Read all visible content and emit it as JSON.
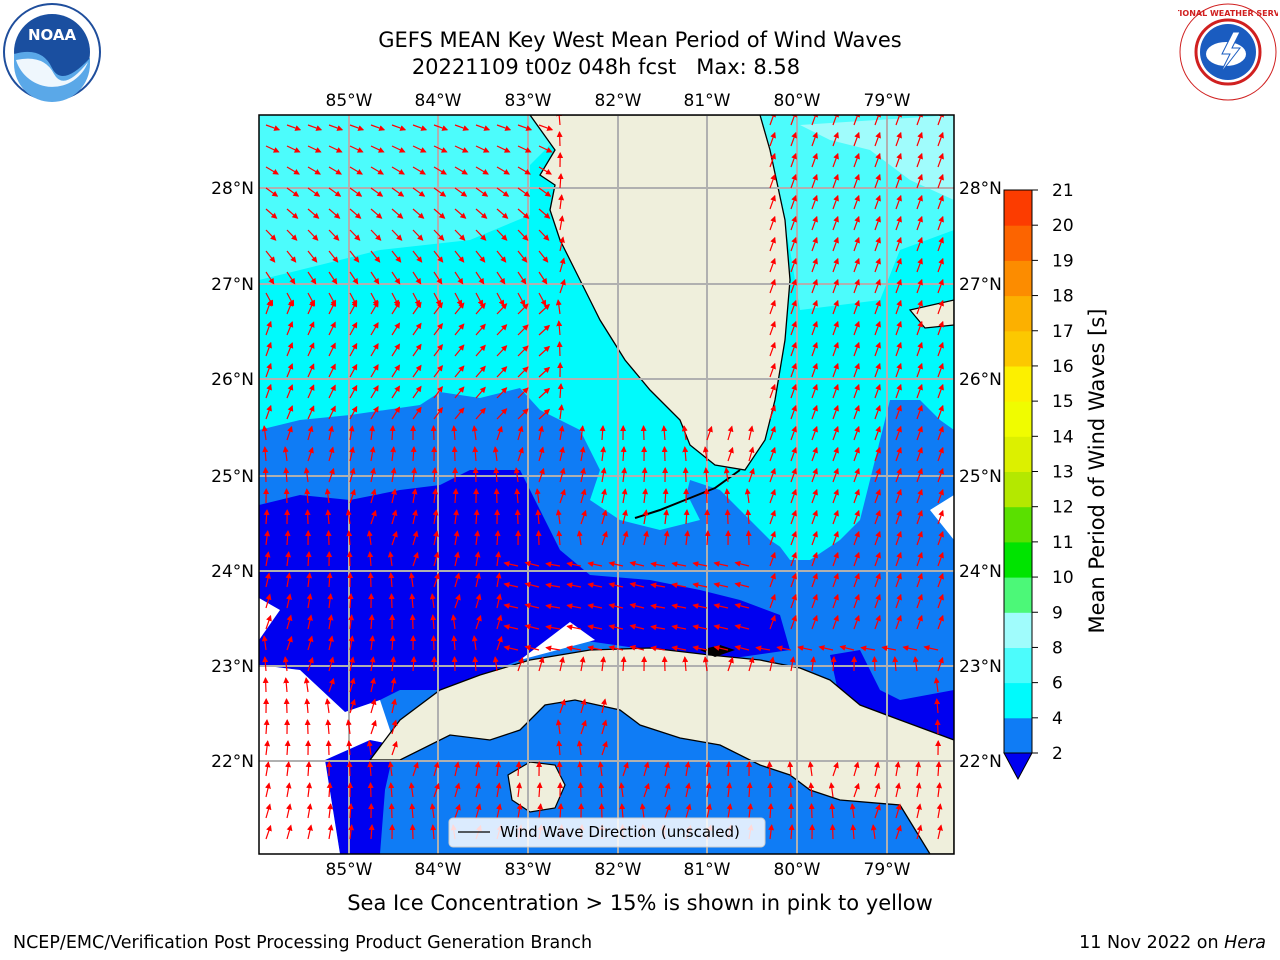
{
  "title": {
    "line1": "GEFS MEAN Key West Mean Period of Wind Waves",
    "line2": "20221109 t00z 048h fcst   Max: 8.58"
  },
  "logos": {
    "left": "noara-logo",
    "left_text": "NOAA",
    "right": "nws-logo",
    "right_ring": "NATIONAL WEATHER SERVICE"
  },
  "map": {
    "lon_labels": [
      "85°W",
      "84°W",
      "83°W",
      "82°W",
      "81°W",
      "80°W",
      "79°W"
    ],
    "lat_labels": [
      "28°N",
      "27°N",
      "26°N",
      "25°N",
      "24°N",
      "23°N",
      "22°N"
    ],
    "legend_label": "Wind Wave Direction (unscaled)",
    "colors": {
      "land": "#efefdc",
      "band_2_4": "#0f7cf5",
      "band_4_6": "#00fafc",
      "band_6_8": "#4cfcfc",
      "band_8_9": "#a0fcfc",
      "deep": "#0000f0",
      "arrow": "#ff0000",
      "grid": "#b0b0b0"
    }
  },
  "colorbar": {
    "label": "Mean Period of Wind Waves [s]",
    "ticks": [
      "2",
      "4",
      "6",
      "8",
      "9",
      "10",
      "11",
      "12",
      "13",
      "14",
      "15",
      "16",
      "17",
      "18",
      "19",
      "20",
      "21"
    ],
    "colors": [
      "#0f7cf5",
      "#00fafc",
      "#4cfcfc",
      "#a0fcfc",
      "#4cf878",
      "#00e400",
      "#5ae000",
      "#b4e800",
      "#dcf000",
      "#f0fc00",
      "#fcf000",
      "#fcc800",
      "#fcb000",
      "#fc8c00",
      "#fc6400",
      "#fc3c00",
      "#fc0000"
    ],
    "extend_color": "#0000f0"
  },
  "caption": "Sea Ice Concentration > 15% is shown in pink to yellow",
  "footer": {
    "left": "NCEP/EMC/Verification Post Processing Product Generation Branch",
    "right_date": "11 Nov 2022 on ",
    "right_host": "Hera"
  }
}
